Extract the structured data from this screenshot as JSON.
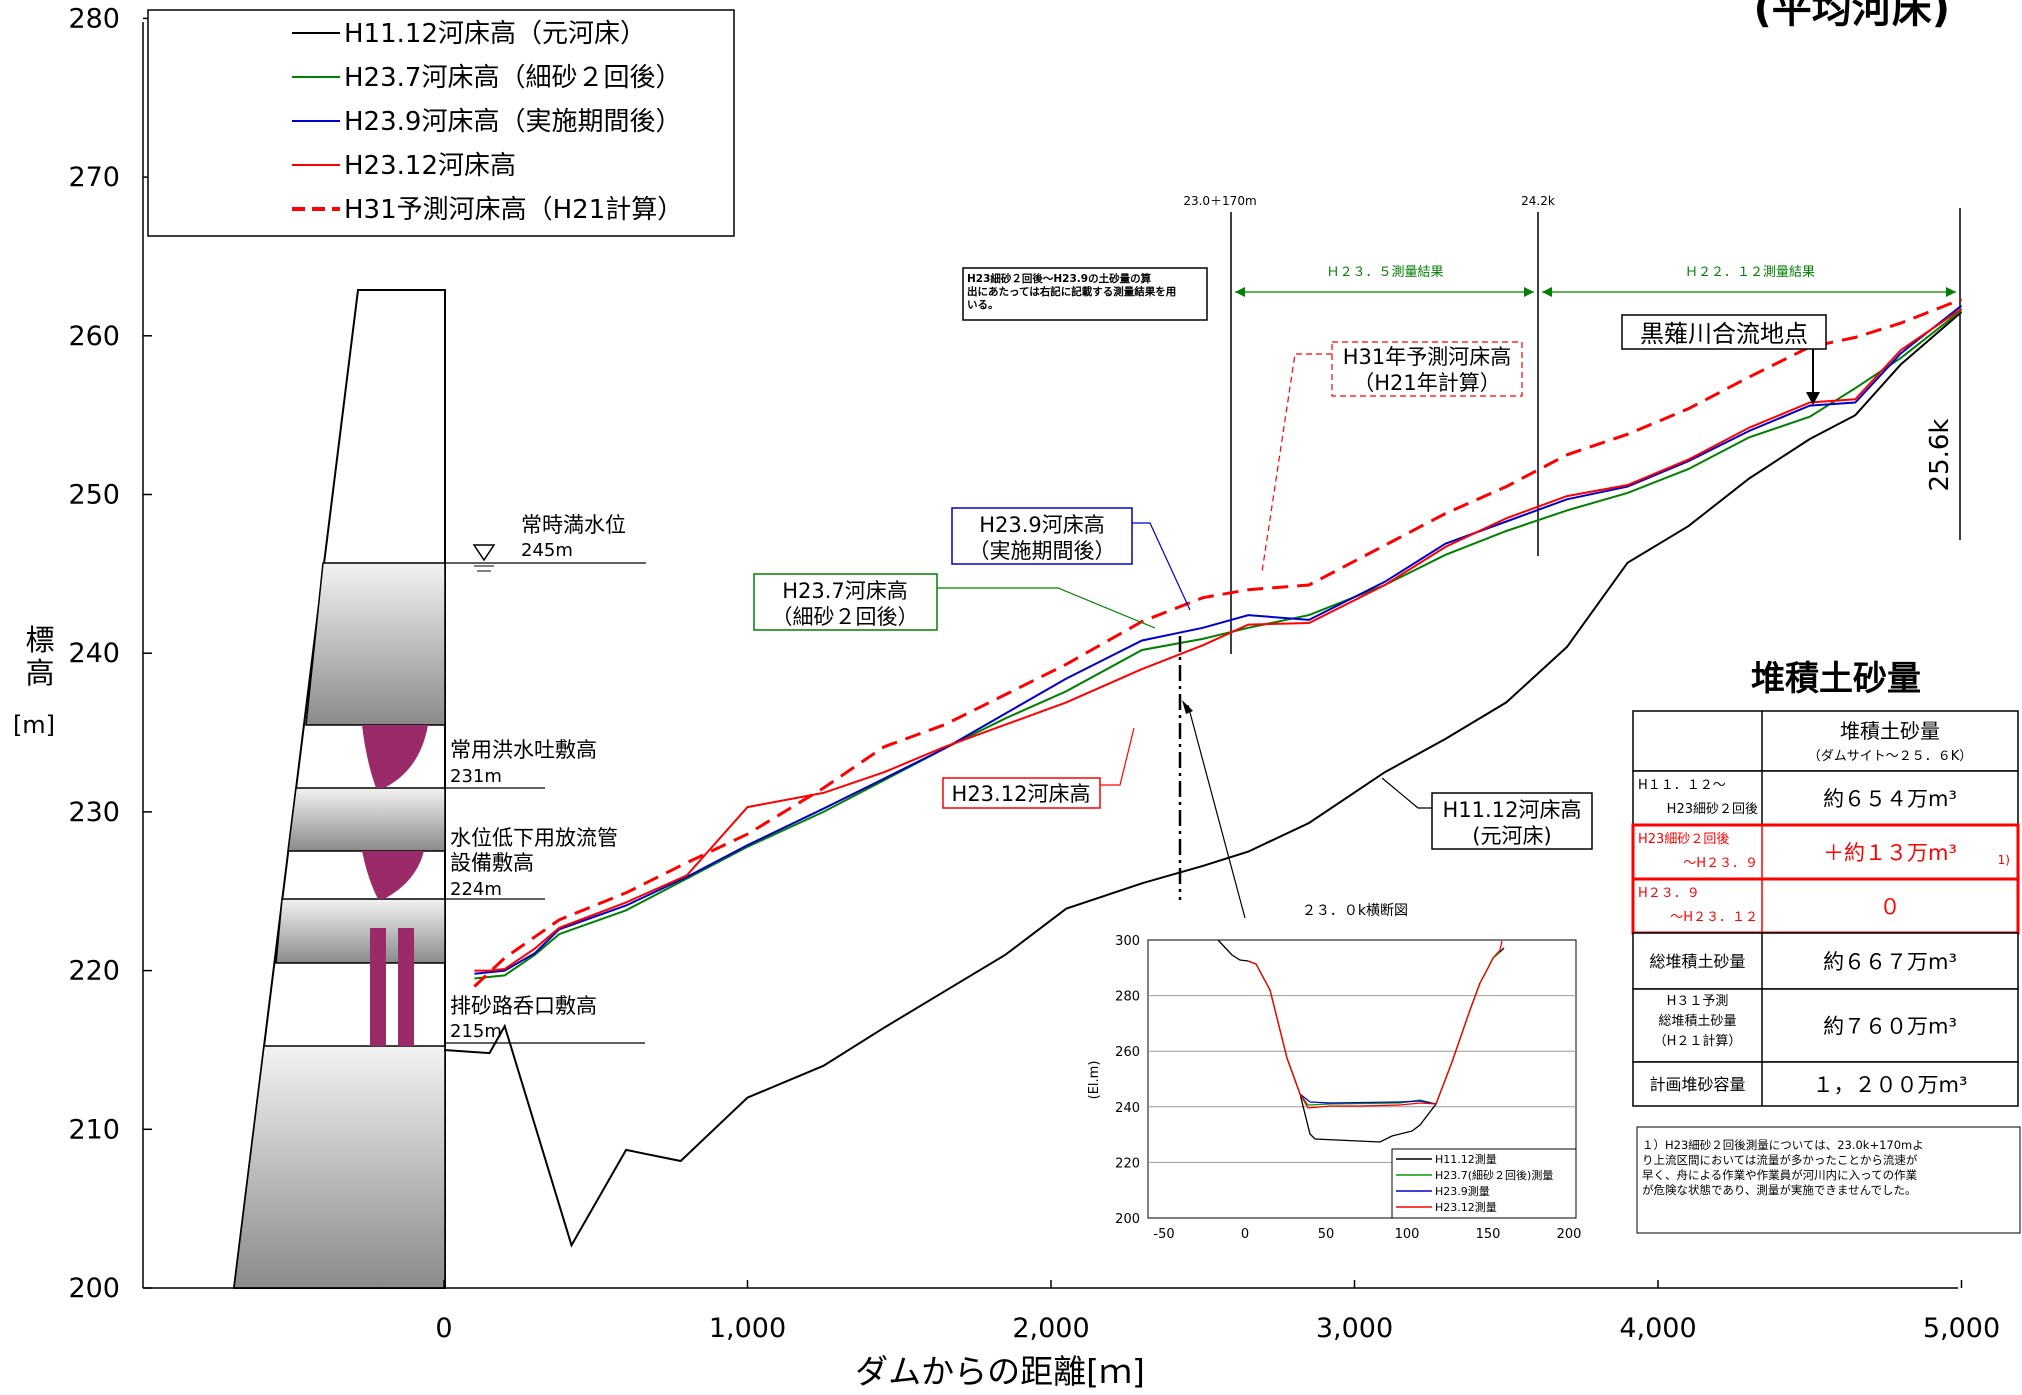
{
  "corner_title": "(平均河床)",
  "chart_data": {
    "type": "line",
    "xlabel": "ダムからの距離[ｍ]",
    "ylabel": [
      "標",
      "高",
      "[m]"
    ],
    "xlim": [
      -1000,
      5100
    ],
    "ylim": [
      200,
      280
    ],
    "xticks": [
      0,
      1000,
      2000,
      3000,
      4000,
      5000
    ],
    "xtick_labels": [
      "0",
      "1,000",
      "2,000",
      "3,000",
      "4,000",
      "5,000"
    ],
    "yticks": [
      200,
      210,
      220,
      230,
      240,
      250,
      260,
      270,
      280
    ],
    "grid": false,
    "legend_position": "top-left",
    "legend": [
      {
        "label": "H11.12河床高（元河床）",
        "color": "#000000",
        "dash": false
      },
      {
        "label": "H23.7河床高（細砂２回後）",
        "color": "#008000",
        "dash": false
      },
      {
        "label": "H23.9河床高（実施期間後）",
        "color": "#0000cc",
        "dash": false
      },
      {
        "label": "H23.12河床高",
        "color": "#ff0000",
        "dash": false
      },
      {
        "label": "H31予測河床高（H21計算）",
        "color": "#ff0000",
        "dash": true
      }
    ],
    "series": [
      {
        "name": "H11.12河床高（元河床）",
        "color": "#000000",
        "x": [
          0,
          150,
          200,
          420,
          600,
          780,
          1000,
          1250,
          1450,
          1650,
          1850,
          2050,
          2300,
          2500,
          2650,
          2850,
          3100,
          3300,
          3500,
          3700,
          3900,
          4100,
          4300,
          4500,
          4650,
          4800,
          5000
        ],
        "y": [
          215,
          214.8,
          216.5,
          202.7,
          208.7,
          208,
          212,
          214,
          216.4,
          218.7,
          221,
          223.9,
          225.5,
          226.6,
          227.5,
          229.3,
          232.5,
          234.6,
          236.9,
          240.4,
          245.7,
          248,
          251,
          253.5,
          255,
          258.2,
          261.5
        ]
      },
      {
        "name": "H23.7河床高（細砂２回後）",
        "color": "#008000",
        "x": [
          100,
          150,
          200,
          300,
          380,
          600,
          800,
          1000,
          1250,
          1450,
          1650,
          1850,
          2050,
          2300,
          2500,
          2650,
          2850,
          3100,
          3300,
          3500,
          3700,
          3900,
          4100,
          4300,
          4500,
          4650,
          4800,
          5000
        ],
        "y": [
          219.5,
          219.6,
          219.7,
          221,
          222.3,
          223.8,
          225.8,
          227.8,
          230,
          232,
          234,
          235.9,
          237.6,
          240.2,
          240.9,
          241.6,
          242.4,
          244.3,
          246.2,
          247.7,
          249,
          250.1,
          251.6,
          253.6,
          254.9,
          256.7,
          258.6,
          261.6
        ]
      },
      {
        "name": "H23.9河床高（実施期間後）",
        "color": "#0000cc",
        "x": [
          100,
          150,
          200,
          300,
          380,
          600,
          800,
          1000,
          1250,
          1450,
          1650,
          1850,
          2050,
          2300,
          2500,
          2650,
          2850,
          3100,
          3300,
          3500,
          3700,
          3900,
          4100,
          4300,
          4500,
          4650,
          4800,
          5000
        ],
        "y": [
          219.8,
          219.9,
          220,
          221.1,
          222.6,
          224.1,
          225.9,
          227.9,
          230.2,
          232.1,
          234,
          236.2,
          238.4,
          240.8,
          241.6,
          242.4,
          242.1,
          244.5,
          246.9,
          248.3,
          249.7,
          250.5,
          252.1,
          254,
          255.6,
          255.8,
          258.9,
          261.9
        ]
      },
      {
        "name": "H23.12河床高",
        "color": "#ff0000",
        "x": [
          100,
          150,
          200,
          300,
          380,
          600,
          800,
          1000,
          1250,
          1450,
          1650,
          1850,
          2050,
          2300,
          2500,
          2650,
          2850,
          3100,
          3300,
          3500,
          3700,
          3900,
          4100,
          4300,
          4500,
          4650,
          4800,
          5000
        ],
        "y": [
          220,
          220,
          220.1,
          221.4,
          222.7,
          224.3,
          226,
          230.3,
          231.2,
          232.5,
          234.1,
          235.5,
          236.9,
          239,
          240.5,
          241.8,
          241.9,
          244.3,
          246.7,
          248.5,
          249.9,
          250.6,
          252.2,
          254.2,
          255.8,
          256,
          259.1,
          261.7
        ]
      },
      {
        "name": "H31予測河床高（H21計算）",
        "color": "#ff0000",
        "dash": true,
        "x": [
          100,
          200,
          380,
          600,
          800,
          1000,
          1250,
          1450,
          1650,
          1850,
          2050,
          2300,
          2500,
          2650,
          2850,
          3100,
          3300,
          3500,
          3700,
          3900,
          4100,
          4300,
          4500,
          4650,
          4800,
          5000
        ],
        "y": [
          219,
          220.8,
          223.2,
          224.9,
          226.8,
          228.6,
          231.5,
          234.1,
          235.5,
          237.4,
          239.3,
          242,
          243.5,
          244,
          244.3,
          246.8,
          248.8,
          250.5,
          252.5,
          253.8,
          255.4,
          257.4,
          259.3,
          259.9,
          260.8,
          262.3
        ]
      }
    ],
    "vertical_markers": [
      {
        "x": 2670,
        "label": "23.0＋170m"
      },
      {
        "x": 3700,
        "label": "24.2k"
      },
      {
        "x": 5080,
        "label": "25.6k"
      }
    ],
    "survey_spans": [
      {
        "label": "Ｈ２３．５測量結果"
      },
      {
        "label": "Ｈ２２．１２測量結果"
      }
    ],
    "note_box": "H23細砂２回後～H23.9の土砂量の算出にあたっては右記に記載する測量結果を用いる。",
    "annotations": {
      "h31": [
        "H31年予測河床高",
        "（H21年計算）"
      ],
      "h239": [
        "H23.9河床高",
        "（実施期間後）"
      ],
      "h237": [
        "H23.7河床高",
        "（細砂２回後）"
      ],
      "h2312": "H23.12河床高",
      "h1112": [
        "H11.12河床高",
        "(元河床)"
      ],
      "confluence": "黒薙川合流地点"
    },
    "dam_labels": {
      "normal_water": [
        "常時満水位",
        "245m"
      ],
      "spillway": [
        "常用洪水吐敷高",
        "231m"
      ],
      "outlet": [
        "水位低下用放流管",
        "設備敷高",
        "224m"
      ],
      "sediment": [
        "排砂路呑口敷高",
        "215m"
      ]
    }
  },
  "inset": {
    "title": "２３．０k横断図",
    "ylabel": "(El.m)",
    "xticks": [
      -50,
      0,
      50,
      100,
      150,
      200
    ],
    "yticks": [
      200,
      220,
      240,
      260,
      280,
      300
    ],
    "legend": [
      {
        "label": "H11.12測量",
        "color": "#000000"
      },
      {
        "label": "H23.7(細砂２回後)測量",
        "color": "#00a000"
      },
      {
        "label": "H23.9測量",
        "color": "#0000cc"
      },
      {
        "label": "H23.12測量",
        "color": "#ff0000"
      }
    ]
  },
  "sediment_table": {
    "title": "堆積土砂量",
    "header": [
      "",
      "堆積土砂量",
      "（ダムサイト～２５．６K）"
    ],
    "rows": [
      {
        "label": [
          "H１１．１２～",
          "H23細砂２回後"
        ],
        "value": "約６５４万m³",
        "highlight": false
      },
      {
        "label": [
          "H23細砂２回後",
          "～H２３．９"
        ],
        "value": "＋約１３万m³",
        "note": "1)",
        "highlight": true
      },
      {
        "label": [
          "H２３．９",
          "～H２３．１２"
        ],
        "value": "０",
        "highlight": true
      },
      {
        "label": [
          "総堆積土砂量"
        ],
        "value": "約６６７万m³",
        "highlight": false
      },
      {
        "label": [
          "H３１予測",
          "総堆積土砂量",
          "（H２１計算）"
        ],
        "value": "約７６０万m³",
        "highlight": false
      },
      {
        "label": [
          "計画堆砂容量"
        ],
        "value": "１，２００万m³",
        "highlight": false
      }
    ],
    "footnote": [
      "１）H23細砂２回後測量については、23.0k+170mよ",
      "り上流区間においては流量が多かったことから流速が",
      "早く、舟による作業や作業員が河川内に入っての作業",
      "が危険な状態であり、測量が実施できませんでした。"
    ]
  }
}
